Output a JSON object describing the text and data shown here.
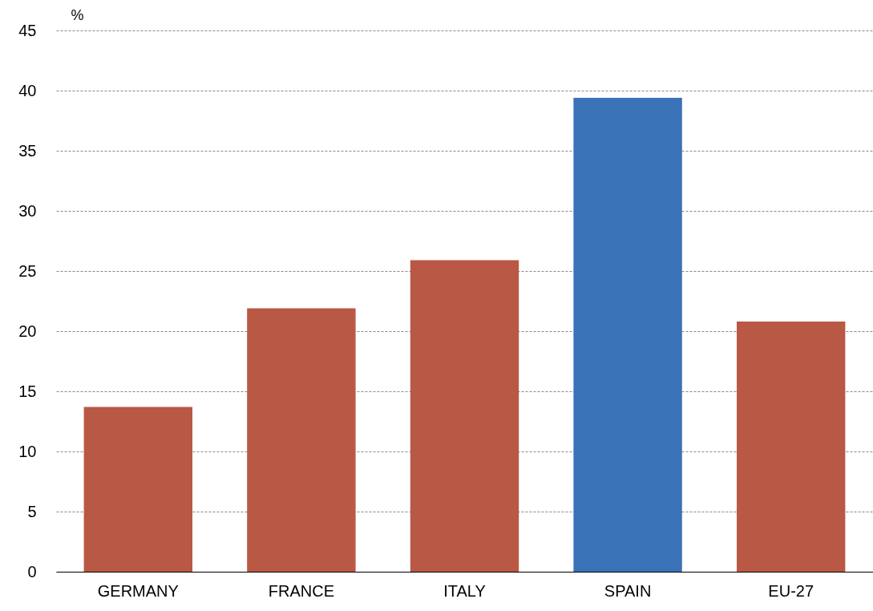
{
  "chart_data": {
    "type": "bar",
    "ylabel": "%",
    "categories": [
      "GERMANY",
      "FRANCE",
      "ITALY",
      "SPAIN",
      "EU-27"
    ],
    "values": [
      13.7,
      21.9,
      25.9,
      39.4,
      20.8
    ],
    "colors": [
      "#b95845",
      "#b95845",
      "#b95845",
      "#3a72b8",
      "#b95845"
    ],
    "ylim": [
      0,
      45
    ],
    "yticks": [
      0,
      5,
      10,
      15,
      20,
      25,
      30,
      35,
      40,
      45
    ],
    "grid": "y"
  }
}
